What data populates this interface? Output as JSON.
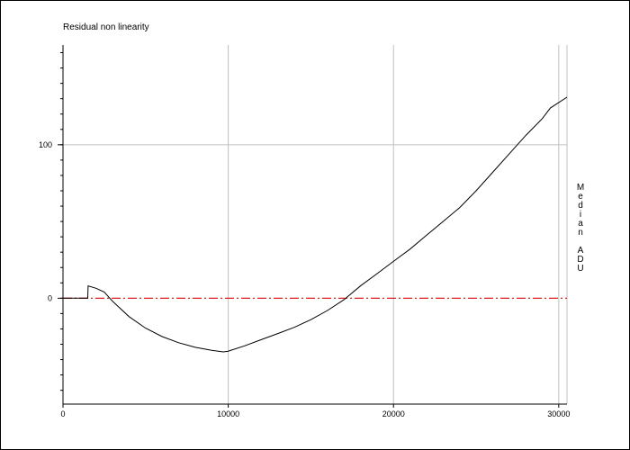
{
  "chart_data": {
    "type": "line",
    "title": "Residual non linearity",
    "xlabel": "",
    "ylabel": "Median ADU",
    "xlim": [
      0,
      30500
    ],
    "ylim": [
      -69,
      165
    ],
    "xticks": [
      0,
      10000,
      20000,
      30000
    ],
    "yticks": [
      0,
      100
    ],
    "x_gridlines": [
      10000,
      20000,
      30000
    ],
    "y_gridlines": [
      100
    ],
    "grid": true,
    "colors": {
      "curve": "#000000",
      "reference_line": "#e02020",
      "grid": "#c0c0c0"
    },
    "reference_line": {
      "y": 0,
      "style": "dash-dot"
    },
    "series": [
      {
        "x": [
          0,
          1500,
          1520,
          2000,
          2500,
          3000,
          4000,
          5000,
          6000,
          7000,
          8000,
          9000,
          9700,
          10000,
          11000,
          12000,
          13000,
          14000,
          15000,
          16000,
          17000,
          18000,
          19000,
          20000,
          21000,
          22000,
          23000,
          24000,
          25000,
          26000,
          27000,
          28000,
          29000,
          29500,
          30500
        ],
        "y": [
          0,
          0,
          8,
          6.5,
          4,
          -2,
          -12,
          -19.5,
          -25,
          -29,
          -32,
          -34,
          -35,
          -34.5,
          -31,
          -27,
          -23,
          -19,
          -14,
          -8,
          -1,
          8,
          16,
          24,
          32,
          41,
          50,
          59,
          70,
          82,
          94,
          106,
          117,
          124,
          131
        ]
      }
    ]
  }
}
